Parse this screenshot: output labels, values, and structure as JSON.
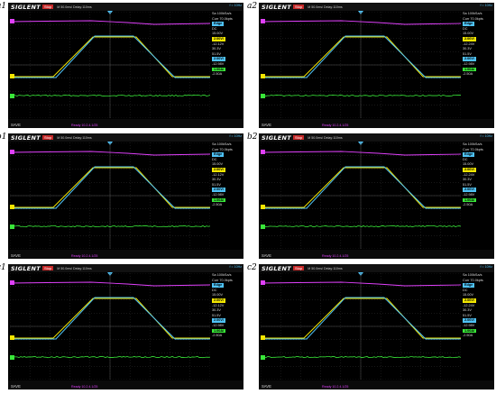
{
  "panels": [
    {
      "id": "a1",
      "brand": "SIGLENT",
      "run": "Stop",
      "header": "M 50.0ms/ Delay:110ms",
      "trig": "f = 10Hz",
      "sa": "Sa 100kSa/s",
      "curr": "Curr 70.0kpts",
      "edge": "Edge",
      "lvl": "DC",
      "vol": "15.00V",
      "ch1": "2.00V/",
      "ch1off": "-12.12V",
      "ch2": "30.3V",
      "ch2off": "51.5V",
      "ch3": "2.00V/",
      "ch3off": "-12.98V",
      "ch4": "1.00A/",
      "ch4off": "-2.50A",
      "save": "SAVE",
      "link": "Ready 10.2.4.1/25"
    },
    {
      "id": "a2",
      "brand": "SIGLENT",
      "run": "Stop",
      "header": "M 50.0ms/ Delay:110ms",
      "trig": "f = 10Hz",
      "sa": "Sa 100kSa/s",
      "curr": "Curr 70.0kpts",
      "edge": "Edge",
      "lvl": "DC",
      "vol": "15.00V",
      "ch1": "2.00V/",
      "ch1off": "-12.24V",
      "ch2": "30.3V",
      "ch2off": "51.5V",
      "ch3": "2.00V/",
      "ch3off": "-12.98V",
      "ch4": "1.00A/",
      "ch4off": "-2.50A",
      "save": "SAVE",
      "link": "Ready 10.2.4.1/25"
    },
    {
      "id": "b1",
      "brand": "SIGLENT",
      "run": "Stop",
      "header": "M 50.0ms/ Delay:110ms",
      "trig": "f = 10Hz",
      "sa": "Sa 100kSa/s",
      "curr": "Curr 70.0kpts",
      "edge": "Edge",
      "lvl": "DC",
      "vol": "15.00V",
      "ch1": "2.00V/",
      "ch1off": "-12.12V",
      "ch2": "30.3V",
      "ch2off": "51.5V",
      "ch3": "2.00V/",
      "ch3off": "-12.98V",
      "ch4": "1.00A/",
      "ch4off": "-2.50A",
      "save": "SAVE",
      "link": "Ready 10.2.4.1/25"
    },
    {
      "id": "b2",
      "brand": "SIGLENT",
      "run": "Stop",
      "header": "M 50.0ms/ Delay:110ms",
      "trig": "f = 10Hz",
      "sa": "Sa 100kSa/s",
      "curr": "Curr 70.0kpts",
      "edge": "Edge",
      "lvl": "DC",
      "vol": "15.00V",
      "ch1": "2.00V/",
      "ch1off": "-12.24V",
      "ch2": "30.3V",
      "ch2off": "51.5V",
      "ch3": "2.00V/",
      "ch3off": "-12.98V",
      "ch4": "1.00A/",
      "ch4off": "-2.50A",
      "save": "SAVE",
      "link": "Ready 10.2.4.1/25"
    },
    {
      "id": "c1",
      "brand": "SIGLENT",
      "run": "Stop",
      "header": "M 50.0ms/ Delay:110ms",
      "trig": "f = 10Hz",
      "sa": "Sa 100kSa/s",
      "curr": "Curr 70.0kpts",
      "edge": "Edge",
      "lvl": "DC",
      "vol": "15.00V",
      "ch1": "2.00V/",
      "ch1off": "-12.12V",
      "ch2": "30.3V",
      "ch2off": "51.5V",
      "ch3": "2.00V/",
      "ch3off": "-12.98V",
      "ch4": "1.00A/",
      "ch4off": "-2.50A",
      "save": "SAVE",
      "link": "Ready 10.2.4.1/25"
    },
    {
      "id": "c2",
      "brand": "SIGLENT",
      "run": "Stop",
      "header": "M 50.0ms/ Delay:110ms",
      "trig": "f = 10Hz",
      "sa": "Sa 100kSa/s",
      "curr": "Curr 70.0kpts",
      "edge": "Edge",
      "lvl": "DC",
      "vol": "15.00V",
      "ch1": "2.00V/",
      "ch1off": "-12.24V",
      "ch2": "30.3V",
      "ch2off": "51.5V",
      "ch3": "2.00V/",
      "ch3off": "-12.98V",
      "ch4": "1.00A/",
      "ch4off": "-2.50A",
      "save": "SAVE",
      "link": "Ready 10.2.4.1/25"
    }
  ],
  "colors": {
    "ch1": "#f2e600",
    "ch2": "#e040fb",
    "ch3": "#4fc3f7",
    "ch4": "#39e639",
    "run": "#c62828",
    "grid": "#3a3a3a"
  }
}
